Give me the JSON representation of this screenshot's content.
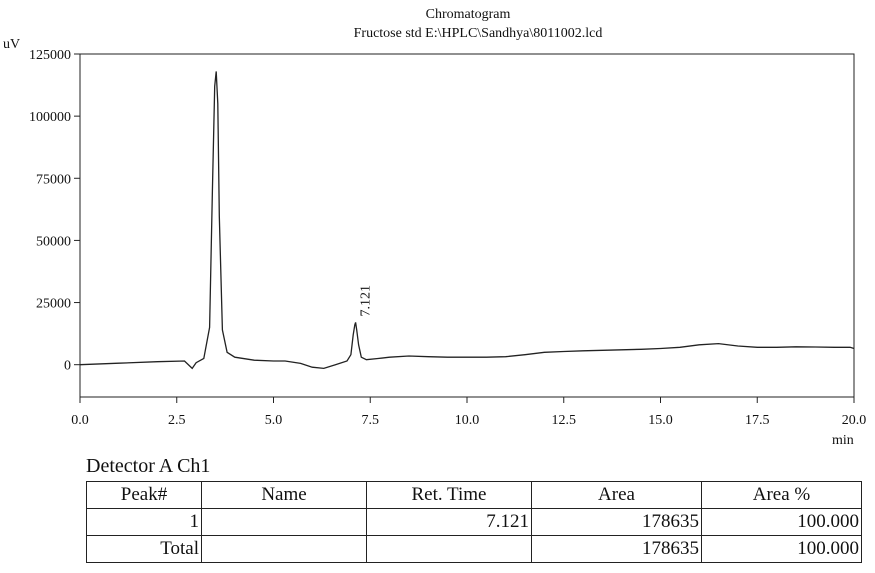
{
  "chart_data": {
    "type": "line",
    "title": "Chromatogram",
    "subtitle": "Fructose std E:\\HPLC\\Sandhya\\8011002.lcd",
    "ylabel": "uV",
    "xlabel": "min",
    "xlim": [
      0.0,
      20.0
    ],
    "ylim": [
      -13000,
      125000
    ],
    "x_ticks": [
      "0.0",
      "2.5",
      "5.0",
      "7.5",
      "10.0",
      "12.5",
      "15.0",
      "17.5",
      "20.0"
    ],
    "y_ticks": [
      "0",
      "25000",
      "50000",
      "75000",
      "100000",
      "125000"
    ],
    "series": [
      {
        "x": [
          0.0,
          1.0,
          2.0,
          2.7,
          2.9,
          3.0,
          3.2,
          3.35,
          3.42,
          3.48,
          3.52,
          3.56,
          3.6,
          3.68,
          3.8,
          4.0,
          4.5,
          5.0,
          5.3,
          5.7,
          6.0,
          6.3,
          6.6,
          6.9,
          7.0,
          7.06,
          7.1,
          7.121,
          7.15,
          7.2,
          7.27,
          7.4,
          7.7,
          8.0,
          8.5,
          9.0,
          9.5,
          10.0,
          10.5,
          11.0,
          11.5,
          12.0,
          12.5,
          13.0,
          13.5,
          14.0,
          14.5,
          15.0,
          15.5,
          16.0,
          16.5,
          17.0,
          17.5,
          18.0,
          18.5,
          19.0,
          19.5,
          19.9,
          20.0
        ],
        "y": [
          0,
          600,
          1200,
          1500,
          -1500,
          800,
          2500,
          15000,
          70000,
          112000,
          118000,
          105000,
          60000,
          14000,
          5000,
          3000,
          1800,
          1500,
          1500,
          500,
          -1000,
          -1500,
          0,
          1500,
          4000,
          12000,
          16000,
          17000,
          14000,
          8000,
          3000,
          2000,
          2500,
          3000,
          3500,
          3200,
          3000,
          3000,
          3000,
          3200,
          4000,
          5000,
          5300,
          5600,
          5800,
          6000,
          6200,
          6500,
          7000,
          8000,
          8500,
          7500,
          7000,
          7000,
          7200,
          7100,
          7000,
          7000,
          6500
        ]
      }
    ],
    "annotations": [
      {
        "x": 7.121,
        "y": 17000,
        "text": "7.121"
      }
    ]
  },
  "report": {
    "detector": "Detector A Ch1",
    "columns": [
      "Peak#",
      "Name",
      "Ret. Time",
      "Area",
      "Area %"
    ],
    "rows": [
      [
        "1",
        "",
        "7.121",
        "178635",
        "100.000"
      ],
      [
        "Total",
        "",
        "",
        "178635",
        "100.000"
      ]
    ]
  }
}
